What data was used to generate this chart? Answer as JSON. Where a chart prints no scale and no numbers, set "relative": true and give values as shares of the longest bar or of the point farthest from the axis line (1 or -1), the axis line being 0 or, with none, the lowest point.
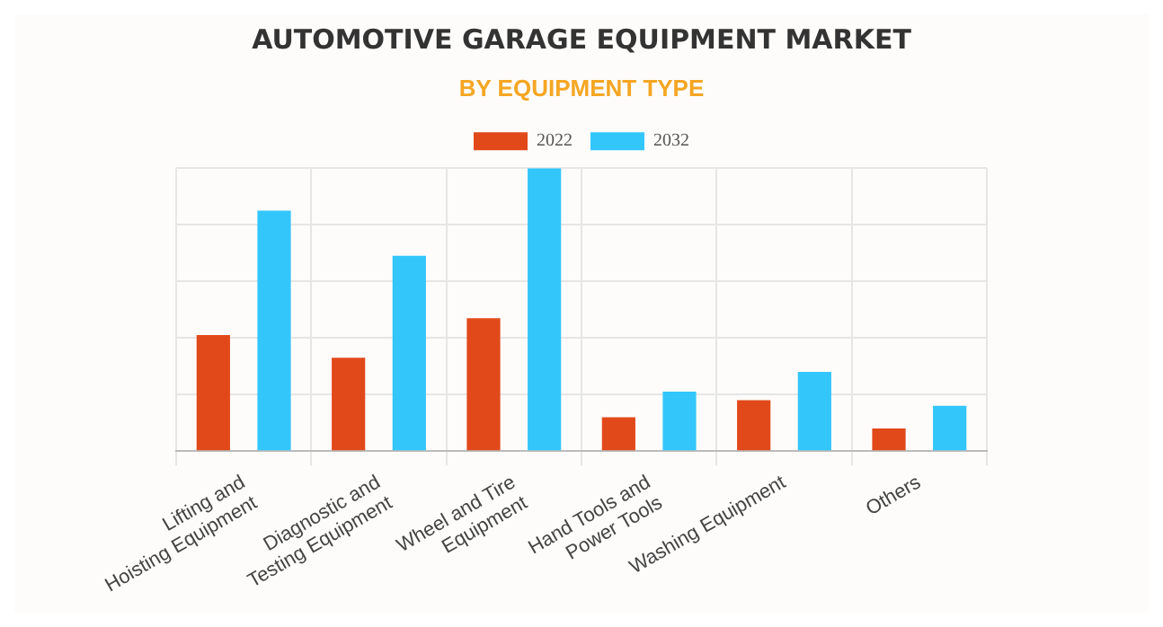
{
  "chart_data": {
    "type": "bar",
    "title": "AUTOMOTIVE GARAGE EQUIPMENT MARKET",
    "subtitle": "BY EQUIPMENT TYPE",
    "categories": [
      "Lifting and Hoisting Equipment",
      "Diagnostic and Testing Equipment",
      "Wheel and Tire Equipment",
      "Hand Tools and Power Tools",
      "Washing Equipment",
      "Others"
    ],
    "series": [
      {
        "name": "2022",
        "color": "#e2491a",
        "values": [
          0.41,
          0.33,
          0.47,
          0.12,
          0.18,
          0.08
        ]
      },
      {
        "name": "2032",
        "color": "#33c6fb",
        "values": [
          0.85,
          0.69,
          1,
          0.21,
          0.28,
          0.16
        ]
      }
    ],
    "relative": true,
    "grid": true,
    "legend": "top"
  }
}
